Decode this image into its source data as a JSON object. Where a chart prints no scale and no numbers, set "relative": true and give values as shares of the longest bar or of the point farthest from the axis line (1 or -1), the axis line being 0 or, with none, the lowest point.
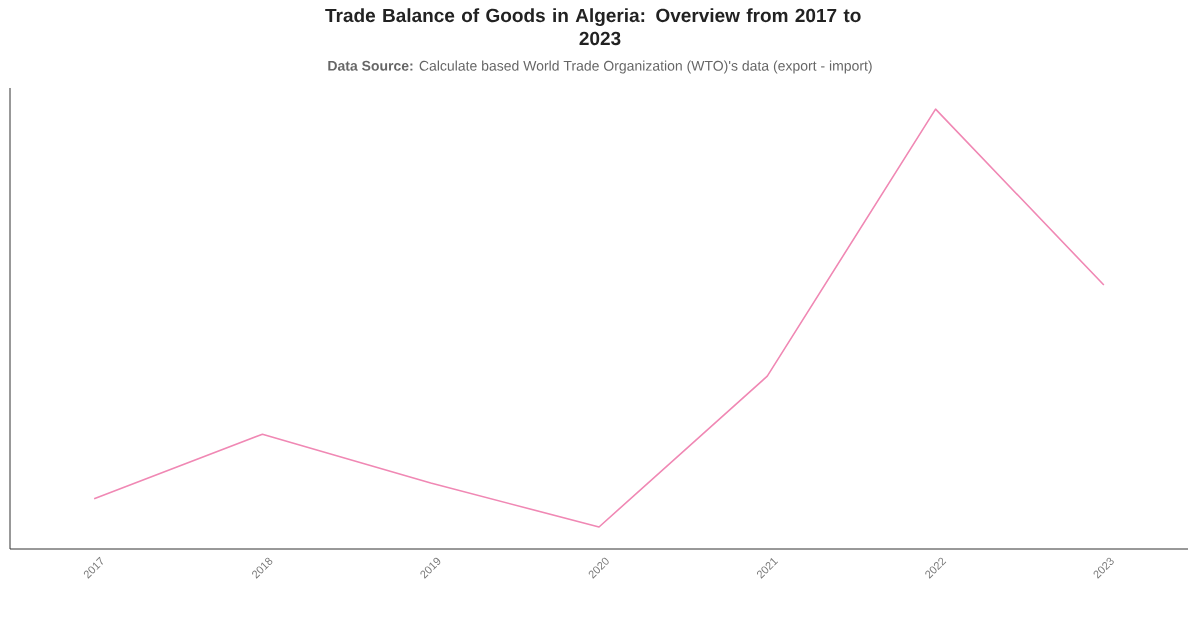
{
  "chart_data": {
    "type": "line",
    "title": "Trade Balance of Goods in Algeria: Overview from 2017 to 2023",
    "subtitle": "**Data Source:** Calculate based World Trade Organization (WTO)'s data (export - import)",
    "categories": [
      "2017",
      "2018",
      "2019",
      "2020",
      "2021",
      "2022",
      "2023"
    ],
    "series": [
      {
        "color": "#f088b4",
        "values": [
          0.114,
          0.261,
          0.15,
          0.05,
          0.393,
          1,
          0.6
        ]
      }
    ],
    "relative": true,
    "marker": "none",
    "line_style": "solid"
  }
}
